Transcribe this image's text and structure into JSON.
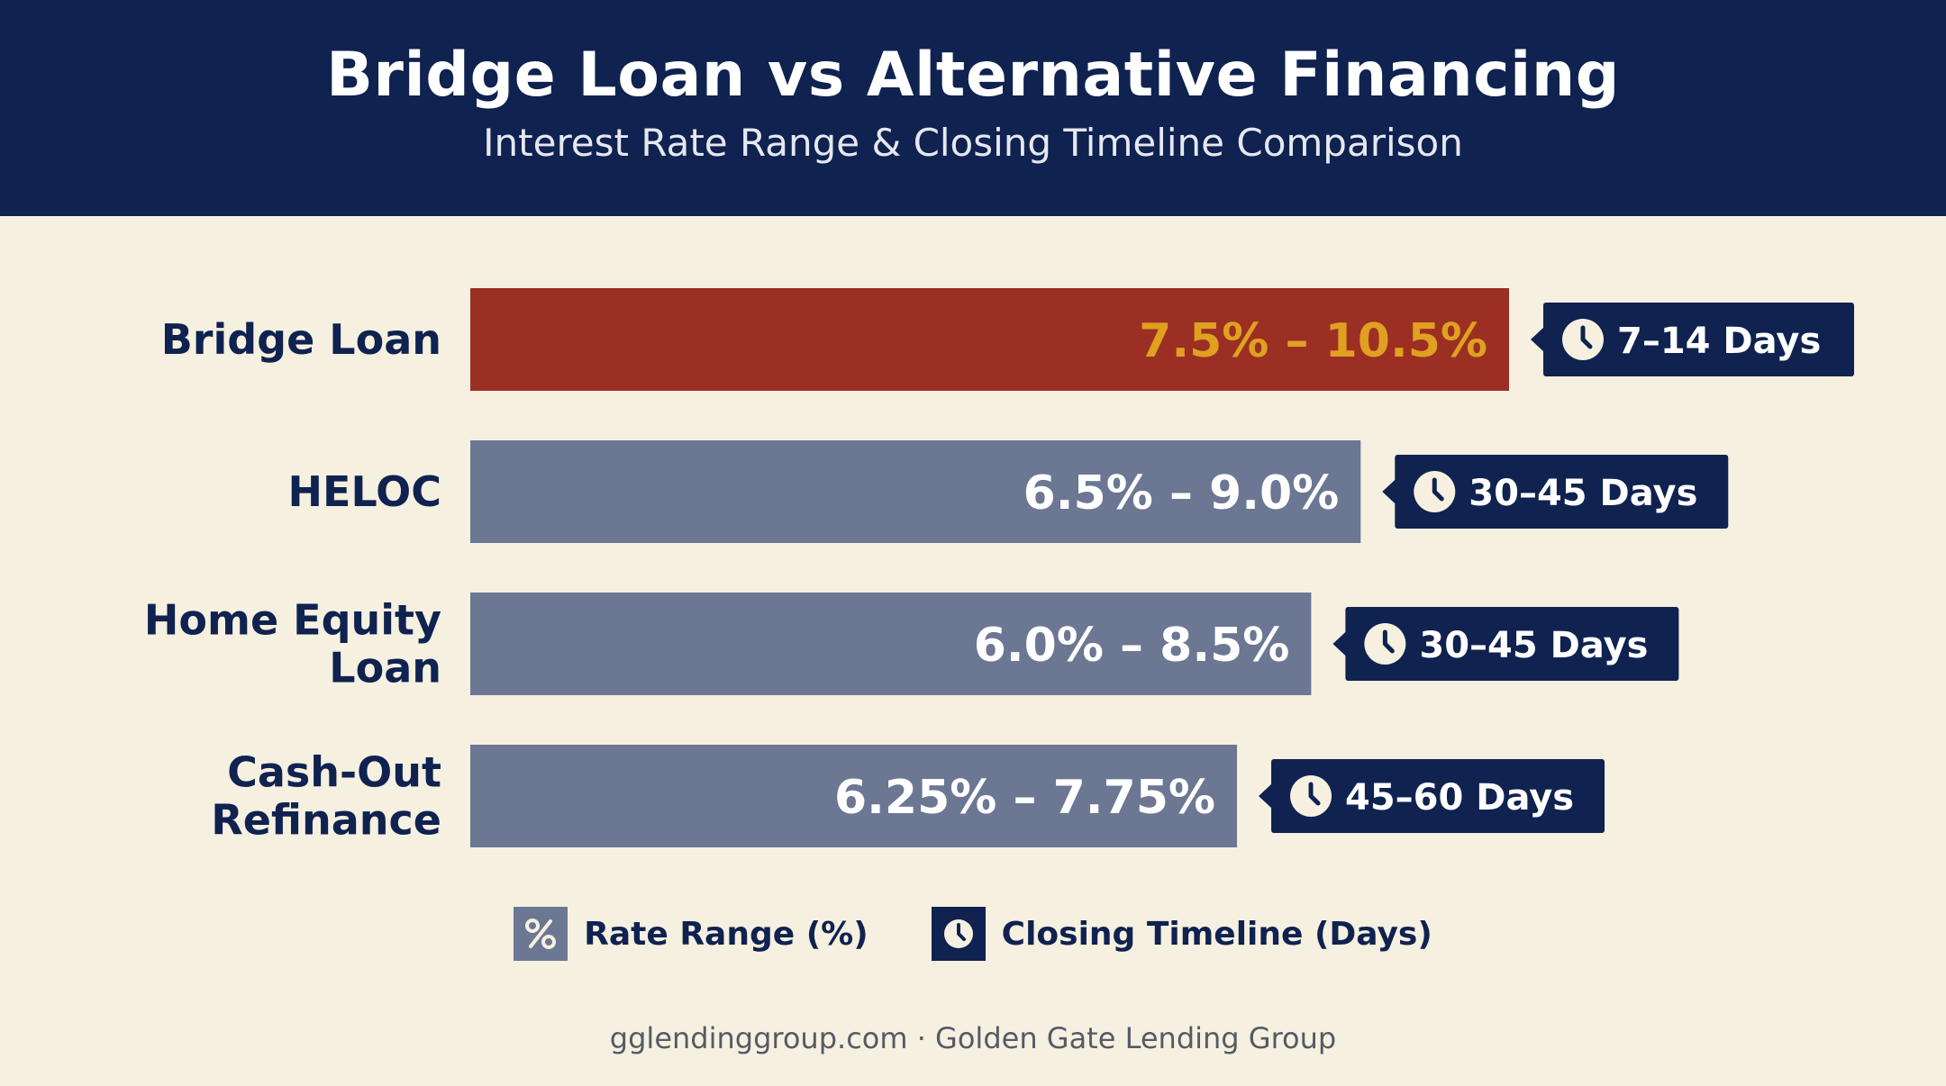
{
  "header": {
    "title": "Bridge Loan vs Alternative Financing",
    "subtitle": "Interest Rate Range & Closing Timeline Comparison"
  },
  "legend": {
    "rate_label": "Rate Range (%)",
    "timeline_label": "Closing Timeline (Days)",
    "rate_icon": "percent-icon",
    "timeline_icon": "clock-icon"
  },
  "footer": {
    "text": "gglendinggroup.com · Golden Gate Lending Group"
  },
  "colors": {
    "header_bg": "#0f2250",
    "background": "#f6f0e0",
    "highlight_bar": "#9b2f24",
    "highlight_text": "#e0a020",
    "standard_bar": "#6b7793",
    "badge_bg": "#0f2250"
  },
  "chart_data": {
    "type": "bar",
    "orientation": "horizontal",
    "title": "Bridge Loan vs Alternative Financing",
    "subtitle": "Interest Rate Range & Closing Timeline Comparison",
    "categories": [
      [
        "Bridge Loan"
      ],
      [
        "HELOC"
      ],
      [
        "Home Equity",
        "Loan"
      ],
      [
        "Cash-Out",
        "Refinance"
      ]
    ],
    "series": [
      {
        "name": "Rate Range (%)",
        "values": [
          10.5,
          9.0,
          8.5,
          7.75
        ],
        "low_values": [
          7.5,
          6.5,
          6.0,
          6.25
        ],
        "labels": [
          "7.5% – 10.5%",
          "6.5% – 9.0%",
          "6.0% – 8.5%",
          "6.25% – 7.75%"
        ],
        "highlight": [
          true,
          false,
          false,
          false
        ]
      },
      {
        "name": "Closing Timeline (Days)",
        "labels": [
          "7–14 Days",
          "30–45 Days",
          "30–45 Days",
          "45–60 Days"
        ]
      }
    ],
    "xlim": [
      0,
      10.5
    ],
    "legend_position": "bottom",
    "grid": false
  }
}
